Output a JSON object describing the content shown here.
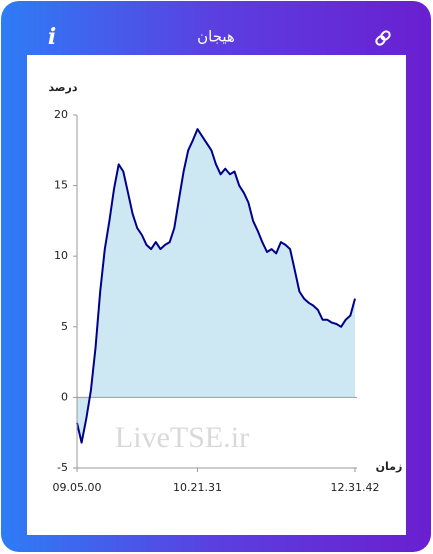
{
  "header": {
    "title": "هیجان",
    "info_icon": "i"
  },
  "chart_data": {
    "type": "area",
    "y_label": "درصد",
    "x_label": "زمان",
    "watermark": "LiveTSE.ir",
    "categories": [
      "09.05.00",
      null,
      null,
      null,
      null,
      null,
      null,
      null,
      null,
      null,
      null,
      null,
      null,
      null,
      null,
      null,
      null,
      null,
      null,
      null,
      null,
      null,
      null,
      null,
      null,
      null,
      "10.21.31",
      null,
      null,
      null,
      null,
      null,
      null,
      null,
      null,
      null,
      null,
      null,
      null,
      null,
      null,
      null,
      null,
      null,
      null,
      null,
      null,
      null,
      null,
      null,
      null,
      null,
      null,
      null,
      null,
      null,
      null,
      null,
      null,
      null,
      "12.31.42"
    ],
    "values": [
      -1.8,
      -3.2,
      -1.5,
      0.5,
      3.5,
      7.5,
      10.5,
      12.5,
      14.8,
      16.5,
      16,
      14.5,
      13,
      12,
      11.5,
      10.8,
      10.5,
      11,
      10.5,
      10.8,
      11,
      12,
      14,
      16,
      17.5,
      18.2,
      19,
      18.5,
      18,
      17.5,
      16.5,
      15.8,
      16.2,
      15.8,
      16,
      15,
      14.5,
      13.8,
      12.5,
      11.8,
      11,
      10.3,
      10.5,
      10.2,
      11,
      10.8,
      10.5,
      9,
      7.5,
      7,
      6.7,
      6.5,
      6.2,
      5.5,
      5.5,
      5.3,
      5.2,
      5,
      5.5,
      5.8,
      7
    ],
    "color": "#00008b",
    "fill": "#cde8f3",
    "ylim": [
      -5,
      20
    ],
    "yticks": [
      -5,
      0,
      5,
      10,
      15,
      20
    ],
    "grid": false
  }
}
